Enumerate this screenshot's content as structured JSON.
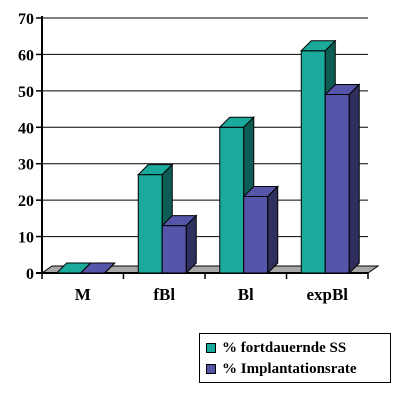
{
  "chart_data": {
    "type": "bar",
    "categories": [
      "M",
      "fBl",
      "Bl",
      "expBl"
    ],
    "series": [
      {
        "name": "% fortdauernde SS",
        "values": [
          0,
          27,
          40,
          61
        ],
        "color": "#1aa99b"
      },
      {
        "name": "% Implantationsrate",
        "values": [
          0,
          13,
          21,
          49
        ],
        "color": "#5555aa"
      }
    ],
    "y_ticks": [
      "0",
      "10",
      "20",
      "30",
      "40",
      "50",
      "60",
      "70"
    ],
    "ylim": [
      0,
      70
    ],
    "grid": true,
    "legend_position": "bottom-right",
    "title": "",
    "xlabel": "",
    "ylabel": ""
  }
}
